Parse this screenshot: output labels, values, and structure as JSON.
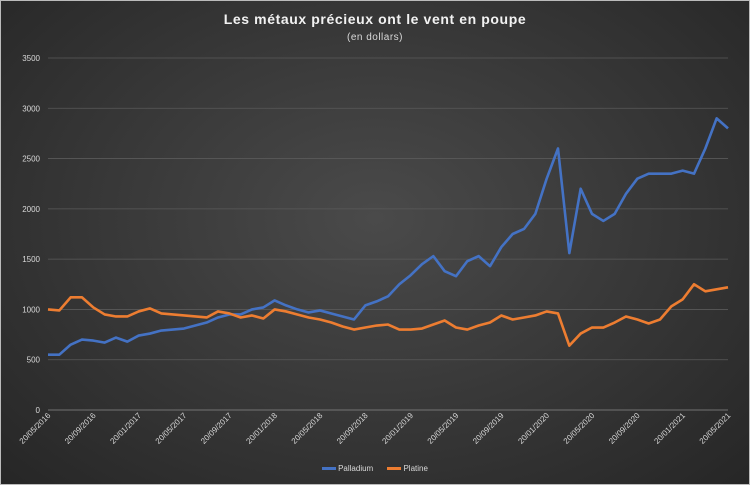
{
  "chart_data": {
    "type": "line",
    "title": "Les métaux précieux ont le vent en poupe",
    "subtitle": "(en dollars)",
    "xlabel": "",
    "ylabel": "",
    "ylim": [
      0,
      3500
    ],
    "yticks": [
      "0",
      "500",
      "1000",
      "1500",
      "2000",
      "2500",
      "3000",
      "3500"
    ],
    "xticks": [
      "20/05/2016",
      "20/09/2016",
      "20/01/2017",
      "20/05/2017",
      "20/09/2017",
      "20/01/2018",
      "20/05/2018",
      "20/09/2018",
      "20/01/2019",
      "20/05/2019",
      "20/09/2019",
      "20/01/2020",
      "20/05/2020",
      "20/09/2020",
      "20/01/2021",
      "20/05/2021"
    ],
    "x_start": "2016-05",
    "x_end": "2021-05",
    "x": [
      "2016-05",
      "2016-06",
      "2016-07",
      "2016-08",
      "2016-09",
      "2016-10",
      "2016-11",
      "2016-12",
      "2017-01",
      "2017-02",
      "2017-03",
      "2017-04",
      "2017-05",
      "2017-06",
      "2017-07",
      "2017-08",
      "2017-09",
      "2017-10",
      "2017-11",
      "2017-12",
      "2018-01",
      "2018-02",
      "2018-03",
      "2018-04",
      "2018-05",
      "2018-06",
      "2018-07",
      "2018-08",
      "2018-09",
      "2018-10",
      "2018-11",
      "2018-12",
      "2019-01",
      "2019-02",
      "2019-03",
      "2019-04",
      "2019-05",
      "2019-06",
      "2019-07",
      "2019-08",
      "2019-09",
      "2019-10",
      "2019-11",
      "2019-12",
      "2020-01",
      "2020-02",
      "2020-03",
      "2020-04",
      "2020-05",
      "2020-06",
      "2020-07",
      "2020-08",
      "2020-09",
      "2020-10",
      "2020-11",
      "2020-12",
      "2021-01",
      "2021-02",
      "2021-03",
      "2021-04",
      "2021-05"
    ],
    "grid": true,
    "legend": "bottom",
    "series": [
      {
        "name": "Palladium",
        "color": "#4472c4",
        "values": [
          550,
          550,
          650,
          700,
          690,
          670,
          720,
          680,
          740,
          760,
          790,
          800,
          810,
          840,
          870,
          920,
          950,
          950,
          1000,
          1020,
          1090,
          1040,
          1000,
          970,
          990,
          960,
          930,
          900,
          1040,
          1080,
          1130,
          1250,
          1340,
          1450,
          1530,
          1380,
          1330,
          1480,
          1530,
          1430,
          1620,
          1750,
          1800,
          1950,
          2300,
          2600,
          1560,
          2200,
          1950,
          1880,
          1950,
          2150,
          2300,
          2350,
          2350,
          2350,
          2380,
          2350,
          2600,
          2900,
          2800
        ]
      },
      {
        "name": "Platine",
        "color": "#ed7d31",
        "values": [
          1000,
          990,
          1120,
          1120,
          1020,
          950,
          930,
          930,
          980,
          1010,
          960,
          950,
          940,
          930,
          920,
          980,
          960,
          920,
          940,
          910,
          1000,
          980,
          950,
          920,
          900,
          870,
          830,
          800,
          820,
          840,
          850,
          800,
          800,
          810,
          850,
          890,
          820,
          800,
          840,
          870,
          940,
          900,
          920,
          940,
          980,
          960,
          640,
          760,
          820,
          820,
          870,
          930,
          900,
          860,
          900,
          1030,
          1100,
          1250,
          1180,
          1200,
          1220
        ]
      }
    ]
  }
}
